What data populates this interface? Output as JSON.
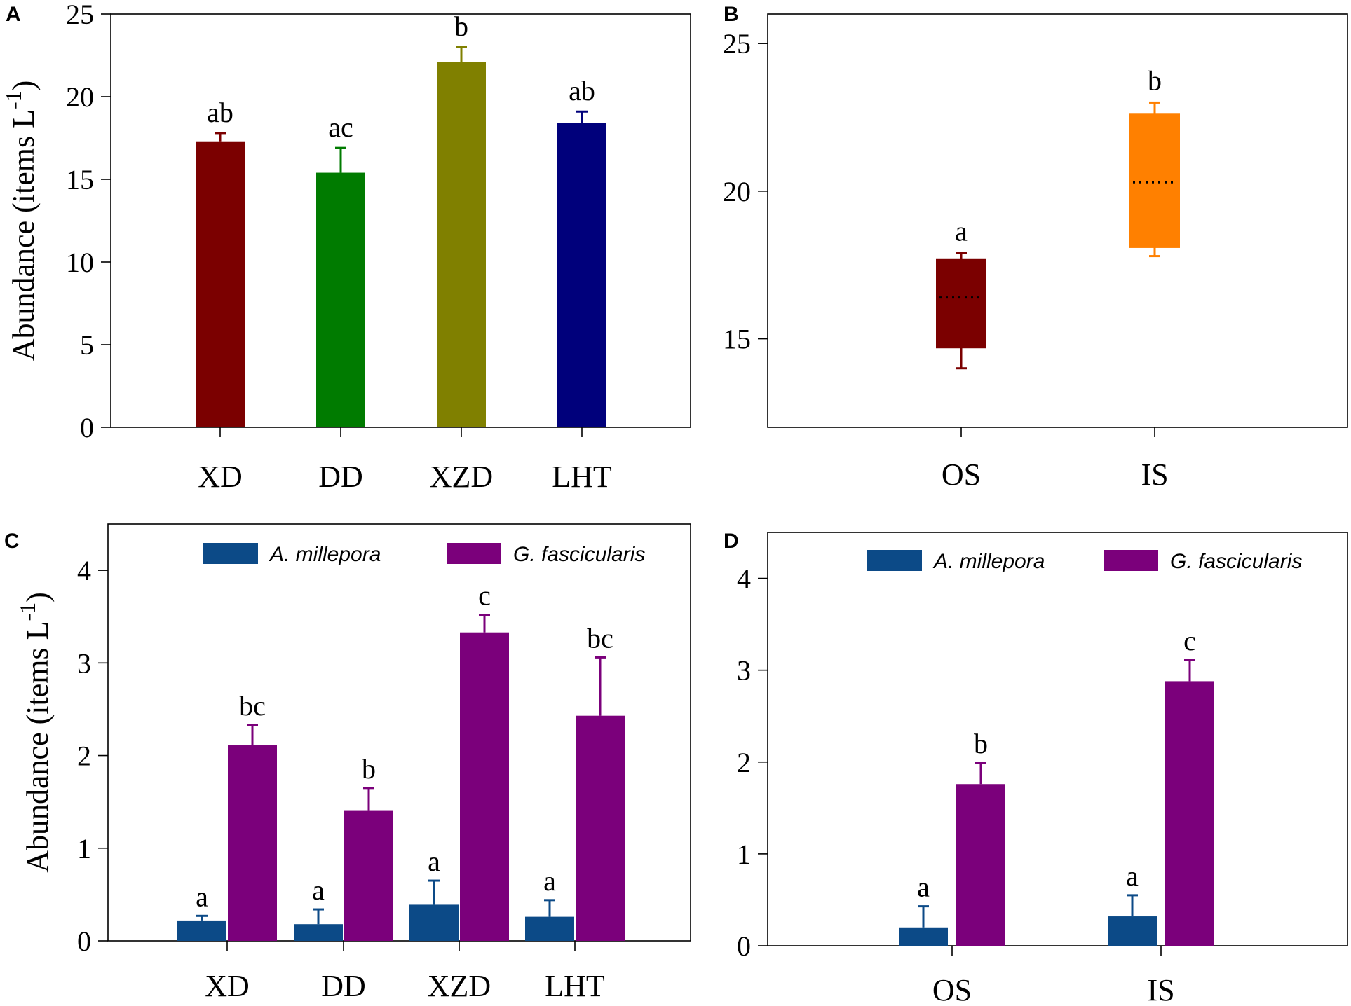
{
  "chart_data": [
    {
      "panel": "A",
      "type": "bar",
      "categories": [
        "XD",
        "DD",
        "XZD",
        "LHT"
      ],
      "values": [
        17.3,
        15.4,
        22.1,
        18.4
      ],
      "errors": [
        0.5,
        1.5,
        0.9,
        0.7
      ],
      "letters": [
        "ab",
        "ac",
        "b",
        "ab"
      ],
      "colors": [
        "#7b0000",
        "#007b00",
        "#808000",
        "#00007b"
      ],
      "ylabel": "Abundance (items L",
      "ylabel_sup": "-1",
      "ylabel_close": ")",
      "ylim": [
        0,
        25
      ],
      "yticks": [
        "0",
        "5",
        "10",
        "15",
        "20",
        "25"
      ]
    },
    {
      "panel": "B",
      "type": "box",
      "categories": [
        "OS",
        "IS"
      ],
      "boxes": [
        {
          "whisker_low": 14.0,
          "q1": 14.7,
          "median": 16.4,
          "q3": 17.7,
          "whisker_high": 17.9,
          "color": "#7b0000"
        },
        {
          "whisker_low": 17.8,
          "q1": 18.1,
          "median": 20.3,
          "q3": 22.6,
          "whisker_high": 23.0,
          "color": "#ff8000"
        }
      ],
      "letters": [
        "a",
        "b"
      ],
      "ylim": [
        12,
        26
      ],
      "yticks": [
        "15",
        "20",
        "25"
      ]
    },
    {
      "panel": "C",
      "type": "bar",
      "categories": [
        "XD",
        "DD",
        "XZD",
        "LHT"
      ],
      "series": [
        {
          "name": "A. millepora",
          "color": "#0c4a87",
          "values": [
            0.22,
            0.18,
            0.39,
            0.26
          ],
          "errors": [
            0.05,
            0.16,
            0.26,
            0.18
          ],
          "letters": [
            "a",
            "a",
            "a",
            "a"
          ]
        },
        {
          "name": "G. fascicularis",
          "color": "#7b007b",
          "values": [
            2.11,
            1.41,
            3.33,
            2.43
          ],
          "errors": [
            0.22,
            0.24,
            0.19,
            0.63
          ],
          "letters": [
            "bc",
            "b",
            "c",
            "bc"
          ]
        }
      ],
      "ylabel": "Abundance (items L",
      "ylabel_sup": "-1",
      "ylabel_close": ")",
      "ylim": [
        0,
        4.5
      ],
      "yticks": [
        "0",
        "1",
        "2",
        "3",
        "4"
      ]
    },
    {
      "panel": "D",
      "type": "bar",
      "categories": [
        "OS",
        "IS"
      ],
      "series": [
        {
          "name": "A. millepora",
          "color": "#0c4a87",
          "values": [
            0.2,
            0.32
          ],
          "errors": [
            0.23,
            0.23
          ],
          "letters": [
            "a",
            "a"
          ]
        },
        {
          "name": "G. fascicularis",
          "color": "#7b007b",
          "values": [
            1.76,
            2.88
          ],
          "errors": [
            0.23,
            0.23
          ],
          "letters": [
            "b",
            "c"
          ]
        }
      ],
      "ylim": [
        0,
        4.5
      ],
      "yticks": [
        "0",
        "1",
        "2",
        "3",
        "4"
      ]
    }
  ]
}
